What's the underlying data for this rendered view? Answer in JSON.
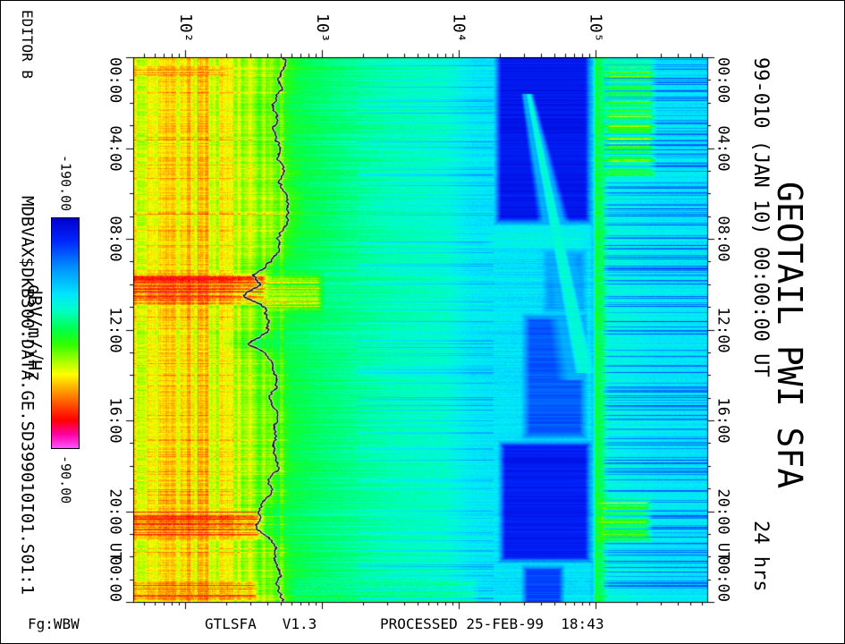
{
  "figure": {
    "bg": "#ffffff",
    "frame_color": "#000000"
  },
  "left_margin": {
    "editor": "EDITOR B",
    "file_path": "MDBVAX$DKB300:DATA.GE.SD399010I01.S01:1"
  },
  "colorbar": {
    "top_label": "-190.00",
    "bottom_label": "-90.00",
    "unit_label": "dBV/m/√Hz",
    "value_range": [
      -190,
      -90
    ],
    "stops": [
      [
        0,
        "#0000d2"
      ],
      [
        0.1,
        "#0028ff"
      ],
      [
        0.22,
        "#0096ff"
      ],
      [
        0.33,
        "#00e6ff"
      ],
      [
        0.4,
        "#00ffc8"
      ],
      [
        0.48,
        "#00ff50"
      ],
      [
        0.55,
        "#32ff00"
      ],
      [
        0.63,
        "#b4ff00"
      ],
      [
        0.68,
        "#ffff00"
      ],
      [
        0.75,
        "#ffa000"
      ],
      [
        0.82,
        "#ff4600"
      ],
      [
        0.88,
        "#ff0000"
      ],
      [
        0.94,
        "#ff00a0"
      ],
      [
        1,
        "#ff50ff"
      ]
    ]
  },
  "titles": {
    "date": "99-010 (JAN 10) 00:00:00 UT",
    "main": "GEOTAIL PWI SFA",
    "duration": "24 hrs"
  },
  "footer": {
    "fg": "Fg:WBW",
    "program": "GTLSFA   V1.3",
    "processed": "PROCESSED 25-FEB-99  18:43"
  },
  "time_axis": {
    "unit": "UT",
    "unit_hour": 21.8,
    "major_step_hours": 4,
    "minor_step_hours": 1,
    "ticks": [
      {
        "hour": 0,
        "label": "00:00"
      },
      {
        "hour": 4,
        "label": "04:00"
      },
      {
        "hour": 8,
        "label": "08:00"
      },
      {
        "hour": 12,
        "label": "12:00"
      },
      {
        "hour": 16,
        "label": "16:00"
      },
      {
        "hour": 20,
        "label": "20:00"
      },
      {
        "hour": 24,
        "label": "00:00"
      }
    ]
  },
  "freq_axis": {
    "scale": "log",
    "ticks": [
      {
        "log": 2,
        "label": "10²"
      },
      {
        "log": 3,
        "label": "10³"
      },
      {
        "log": 4,
        "label": "10⁴"
      },
      {
        "log": 5,
        "label": "10⁵"
      }
    ]
  },
  "chart_data": {
    "type": "heatmap",
    "title": "GEOTAIL PWI SFA",
    "subtitle": "99-010 (JAN 10) 00:00:00 UT, 24 hrs",
    "orientation": "rotated 90 deg: time runs top to bottom, frequency left to right",
    "x": {
      "label": "UT",
      "unit": "hours",
      "range": [
        0,
        24
      ]
    },
    "y": {
      "label": "frequency",
      "unit": "Hz",
      "scale": "log10",
      "log_range": [
        1.62,
        5.82
      ]
    },
    "z": {
      "label": "dBV/m/√Hz",
      "range": [
        -190,
        -90
      ]
    },
    "base_profile": [
      [
        1.62,
        -122
      ],
      [
        2.1,
        -121
      ],
      [
        2.45,
        -125
      ],
      [
        2.6,
        -131
      ],
      [
        2.8,
        -141
      ],
      [
        3.1,
        -145
      ],
      [
        3.5,
        -149
      ],
      [
        3.9,
        -151
      ],
      [
        4.1,
        -156
      ],
      [
        4.3,
        -157
      ],
      [
        4.6,
        -158
      ],
      [
        4.95,
        -157
      ],
      [
        4.98,
        -161
      ],
      [
        5.0,
        -140
      ],
      [
        5.05,
        -144
      ],
      [
        5.1,
        -153
      ],
      [
        5.45,
        -156
      ],
      [
        5.82,
        -157
      ]
    ],
    "features": [
      {
        "name": "deep-blue-band-early",
        "mode": "min",
        "t": [
          -0.5,
          7.4
        ],
        "f": [
          4.25,
          4.98
        ],
        "v": -184,
        "soft_t": 0.35,
        "soft_f": 0.06
      },
      {
        "name": "deep-blue-band-late",
        "mode": "min",
        "t": [
          16.85,
          22.3
        ],
        "f": [
          4.28,
          4.98
        ],
        "v": -183,
        "soft_t": 0.3,
        "soft_f": 0.06
      },
      {
        "name": "blue-band-mid-1",
        "mode": "min",
        "t": [
          8.4,
          11.3
        ],
        "f": [
          4.6,
          4.95
        ],
        "v": -171,
        "soft_t": 0.4,
        "soft_f": 0.08
      },
      {
        "name": "blue-band-mid-2",
        "mode": "min",
        "t": [
          11.2,
          16.9
        ],
        "f": [
          4.45,
          4.95
        ],
        "v": -175,
        "soft_t": 0.4,
        "soft_f": 0.07
      },
      {
        "name": "blue-band-end",
        "mode": "min",
        "t": [
          22.3,
          24.5
        ],
        "f": [
          4.45,
          4.78
        ],
        "v": -177,
        "soft_t": 0.3,
        "soft_f": 0.05
      },
      {
        "name": "bright-gap-0800",
        "mode": "set",
        "t": [
          7.35,
          8.45
        ],
        "f": [
          4.15,
          4.98
        ],
        "v": -154,
        "soft_t": 0.15,
        "soft_f": 0.1
      },
      {
        "name": "funnel-outer",
        "type": "wedge",
        "mode": "max",
        "t": [
          1.6,
          14.2
        ],
        "f_c": [
          4.5,
          4.93
        ],
        "hw": [
          0.05,
          0.22
        ],
        "v": -165
      },
      {
        "name": "funnel-core",
        "type": "wedge",
        "mode": "max",
        "t": [
          1.6,
          13.9
        ],
        "f_c": [
          4.51,
          4.92
        ],
        "hw": [
          0.018,
          0.075
        ],
        "v": -152
      },
      {
        "name": "yellow-patch-early",
        "mode": "patch",
        "t": [
          0,
          5.3
        ],
        "f": [
          5.05,
          5.45
        ],
        "v": -129,
        "spread": 22
      },
      {
        "name": "yellow-patch-late",
        "mode": "patch",
        "t": [
          19.35,
          21.4
        ],
        "f": [
          5.0,
          5.42
        ],
        "v": -126,
        "spread": 22
      },
      {
        "name": "red-burst-0930",
        "mode": "patch",
        "t": [
          9.35,
          10.95
        ],
        "f": [
          1.55,
          2.62
        ],
        "v": -102,
        "spread": 16
      },
      {
        "name": "red-burst-0930-upper",
        "mode": "patch",
        "t": [
          9.4,
          11.25
        ],
        "f": [
          2.55,
          3.02
        ],
        "v": -122,
        "spread": 14
      },
      {
        "name": "red-burst-2000",
        "mode": "patch",
        "t": [
          19.8,
          21.3
        ],
        "f": [
          1.55,
          2.58
        ],
        "v": -105,
        "spread": 16
      },
      {
        "name": "red-burst-2300",
        "mode": "patch",
        "t": [
          22.95,
          23.95
        ],
        "f": [
          1.55,
          2.55
        ],
        "v": -107,
        "spread": 14
      },
      {
        "name": "red-spot-0030",
        "mode": "patch",
        "t": [
          0.3,
          0.85
        ],
        "f": [
          1.55,
          2.3
        ],
        "v": -112,
        "spread": 14
      },
      {
        "name": "green-flush-bottom",
        "mode": "patch",
        "t": [
          22.9,
          24.2
        ],
        "f": [
          2.75,
          4.15
        ],
        "v": -144,
        "spread": 8
      }
    ],
    "trace": {
      "name": "plasma-frequency-line",
      "color": "#000000",
      "points": [
        [
          0,
          2.72
        ],
        [
          1,
          2.7
        ],
        [
          2,
          2.67
        ],
        [
          3,
          2.65
        ],
        [
          4,
          2.67
        ],
        [
          5,
          2.7
        ],
        [
          6,
          2.73
        ],
        [
          6.8,
          2.77
        ],
        [
          7.5,
          2.71
        ],
        [
          8.5,
          2.66
        ],
        [
          9.2,
          2.6
        ],
        [
          9.6,
          2.47
        ],
        [
          10,
          2.56
        ],
        [
          10.5,
          2.44
        ],
        [
          11,
          2.58
        ],
        [
          11.6,
          2.63
        ],
        [
          12.1,
          2.58
        ],
        [
          12.6,
          2.47
        ],
        [
          13,
          2.56
        ],
        [
          13.5,
          2.63
        ],
        [
          14,
          2.67
        ],
        [
          15,
          2.64
        ],
        [
          16,
          2.67
        ],
        [
          17,
          2.64
        ],
        [
          18,
          2.67
        ],
        [
          19,
          2.62
        ],
        [
          20,
          2.56
        ],
        [
          20.6,
          2.5
        ],
        [
          21.2,
          2.61
        ],
        [
          22,
          2.66
        ],
        [
          23,
          2.69
        ],
        [
          24,
          2.71
        ]
      ]
    },
    "noise": {
      "pixel_amp": 5,
      "row_amp": 6,
      "col_amp_low": 11,
      "low_max_logf": 2.72,
      "streak_bands": [
        {
          "name": "right-blue-streaks",
          "f": [
            5.06,
            5.85
          ],
          "prob": 0.3,
          "amp": 26
        },
        {
          "name": "mid-blue-streaks",
          "f": [
            3.25,
            4.25
          ],
          "prob": 0.14,
          "amp": 13
        },
        {
          "name": "low-warm-streaks",
          "f": [
            1.5,
            2.75
          ],
          "prob": 0.1,
          "amp": -9
        }
      ]
    }
  }
}
